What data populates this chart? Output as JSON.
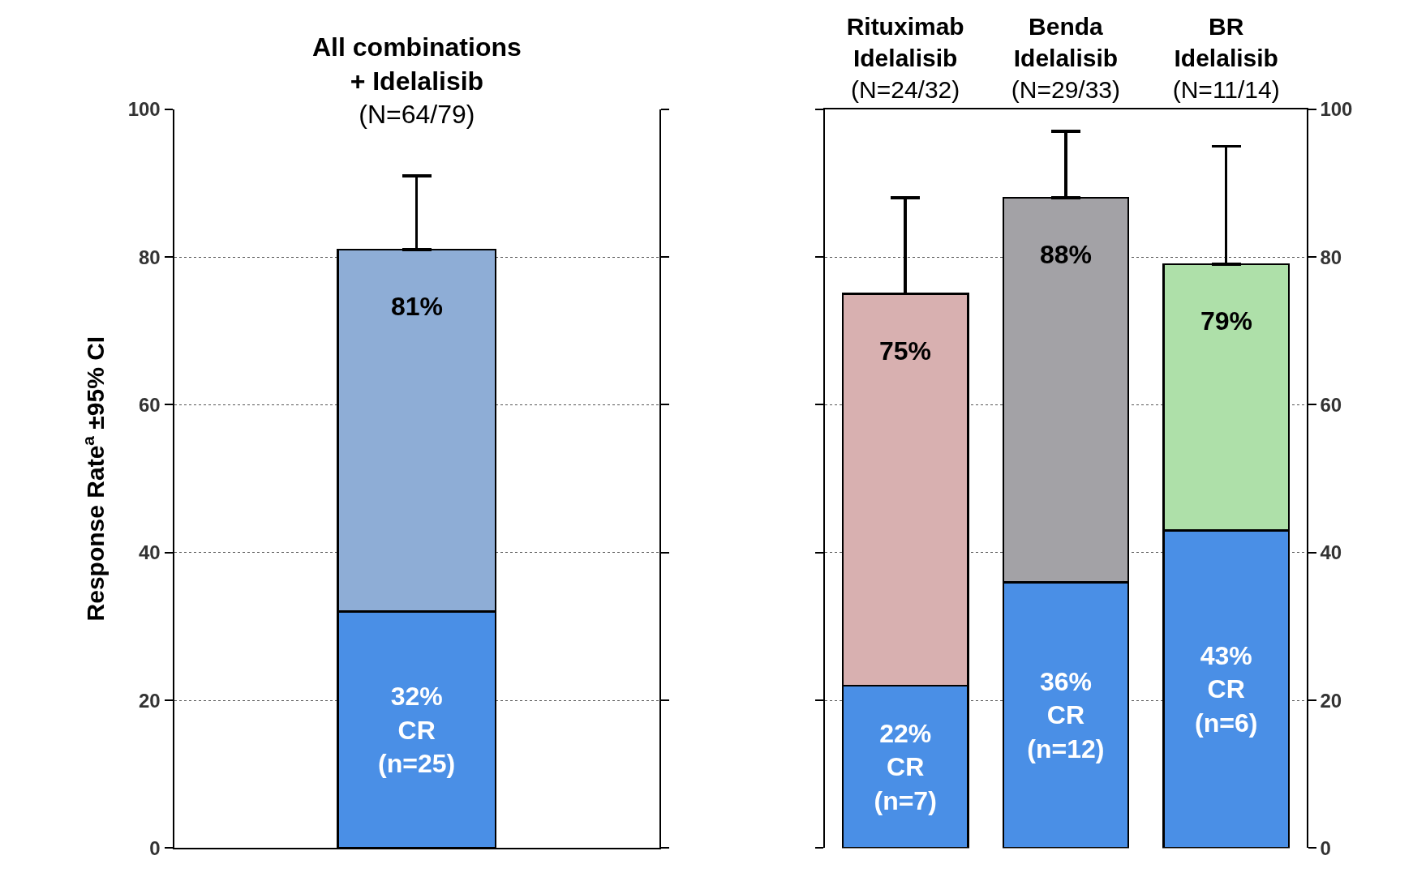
{
  "chart_data": [
    {
      "type": "bar",
      "title": "All combinations\n+ Idelalisib",
      "subtitle": "(N=64/79)",
      "ylabel": "Response Rate$^{a}$ ±95% CI",
      "categories": [
        null
      ],
      "stacked": true,
      "series": [
        {
          "color": "#4a8fe6",
          "values": [
            32
          ],
          "value_labels": [
            "32%\nCR\n(n=25)"
          ]
        },
        {
          "color": "#8eadd6",
          "values": [
            49
          ],
          "errors": [
            [
              81,
              91
            ]
          ]
        }
      ],
      "annotations": [
        {
          "text": "81%",
          "y": 81
        }
      ],
      "ylim": [
        0,
        100
      ],
      "yticks": [
        0,
        20,
        40,
        60,
        80,
        100
      ],
      "grid": "y"
    },
    {
      "type": "bar",
      "categories": [
        "Rituximab\nIdelalisib\n(N=24/32)",
        "Benda\nIdelalisib\n(N=29/33)",
        "BR\nIdelalisib\n(N=11/14)"
      ],
      "stacked": true,
      "series": [
        {
          "color": "#4a8fe6",
          "values": [
            22,
            36,
            43
          ],
          "value_labels": [
            "22%\nCR\n(n=7)",
            "36%\nCR\n(n=12)",
            "43%\nCR\n(n=6)"
          ]
        },
        {
          "colors": [
            "#d8b0b0",
            "#a3a2a6",
            "#aee0a9"
          ],
          "values": [
            53,
            52,
            36
          ],
          "errors": [
            [
              75,
              88
            ],
            [
              88,
              97
            ],
            [
              79,
              95
            ]
          ]
        }
      ],
      "annotations": [
        {
          "text": "75%",
          "x": "Rituximab\nIdelalisib\n(N=24/32)",
          "y": 75
        },
        {
          "text": "88%",
          "x": "Benda\nIdelalisib\n(N=29/33)",
          "y": 88
        },
        {
          "text": "79%",
          "x": "BR\nIdelalisib\n(N=11/14)",
          "y": 79
        }
      ],
      "ylim": [
        0,
        100
      ],
      "yticks": [
        0,
        20,
        40,
        60,
        80,
        100
      ],
      "grid": "y"
    }
  ]
}
